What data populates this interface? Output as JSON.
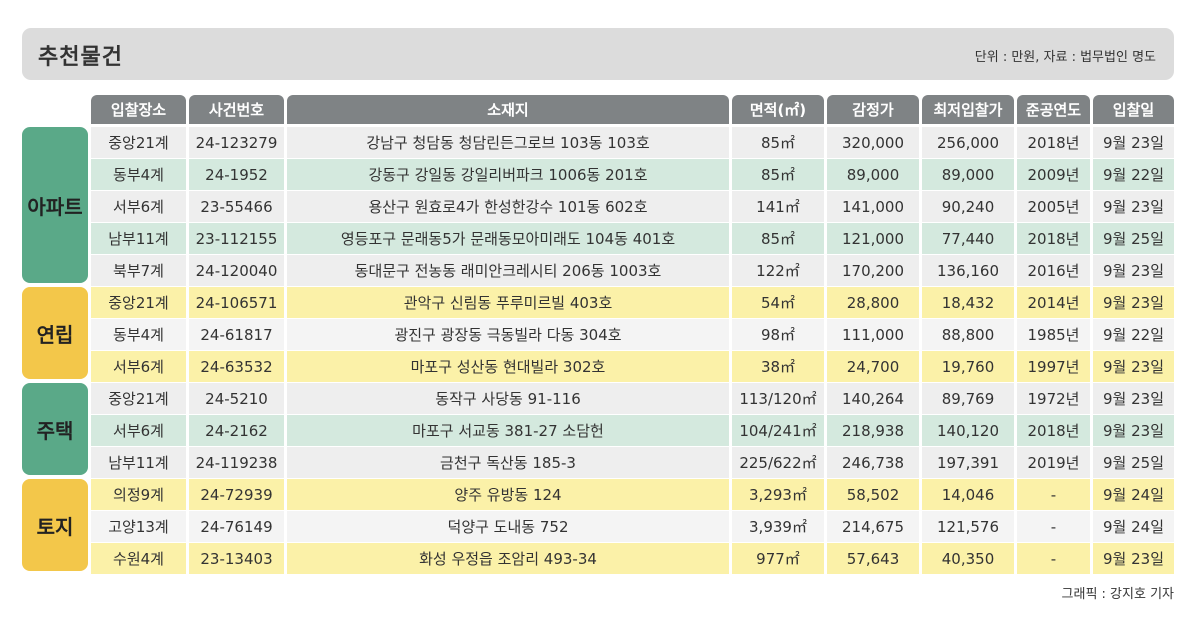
{
  "header": {
    "title": "추천물건",
    "unit_note": "단위 : 만원, 자료 : 법무법인 명도"
  },
  "columns": [
    "입찰장소",
    "사건번호",
    "소재지",
    "면적(㎡)",
    "감정가",
    "최저입찰가",
    "준공연도",
    "입찰일"
  ],
  "groups": [
    {
      "category": "아파트",
      "rows": [
        {
          "place": "중앙21계",
          "case": "24-123279",
          "address": "강남구 청담동 청담린든그로브 103동 103호",
          "area": "85㎡",
          "appraisal": "320,000",
          "min_bid": "256,000",
          "year": "2018년",
          "date": "9월 23일"
        },
        {
          "place": "동부4계",
          "case": "24-1952",
          "address": "강동구 강일동 강일리버파크 1006동 201호",
          "area": "85㎡",
          "appraisal": "89,000",
          "min_bid": "89,000",
          "year": "2009년",
          "date": "9월 22일"
        },
        {
          "place": "서부6계",
          "case": "23-55466",
          "address": "용산구 원효로4가 한성한강수 101동 602호",
          "area": "141㎡",
          "appraisal": "141,000",
          "min_bid": "90,240",
          "year": "2005년",
          "date": "9월 23일"
        },
        {
          "place": "남부11계",
          "case": "23-112155",
          "address": "영등포구 문래동5가 문래동모아미래도 104동 401호",
          "area": "85㎡",
          "appraisal": "121,000",
          "min_bid": "77,440",
          "year": "2018년",
          "date": "9월 25일"
        },
        {
          "place": "북부7계",
          "case": "24-120040",
          "address": "동대문구 전농동 래미안크레시티 206동 1003호",
          "area": "122㎡",
          "appraisal": "170,200",
          "min_bid": "136,160",
          "year": "2016년",
          "date": "9월 23일"
        }
      ]
    },
    {
      "category": "연립",
      "rows": [
        {
          "place": "중앙21계",
          "case": "24-106571",
          "address": "관악구 신림동 푸루미르빌 403호",
          "area": "54㎡",
          "appraisal": "28,800",
          "min_bid": "18,432",
          "year": "2014년",
          "date": "9월 23일"
        },
        {
          "place": "동부4계",
          "case": "24-61817",
          "address": "광진구 광장동 극동빌라 다동 304호",
          "area": "98㎡",
          "appraisal": "111,000",
          "min_bid": "88,800",
          "year": "1985년",
          "date": "9월 22일"
        },
        {
          "place": "서부6계",
          "case": "24-63532",
          "address": "마포구 성산동 현대빌라 302호",
          "area": "38㎡",
          "appraisal": "24,700",
          "min_bid": "19,760",
          "year": "1997년",
          "date": "9월 23일"
        }
      ]
    },
    {
      "category": "주택",
      "rows": [
        {
          "place": "중앙21계",
          "case": "24-5210",
          "address": "동작구 사당동 91-116",
          "area": "113/120㎡",
          "appraisal": "140,264",
          "min_bid": "89,769",
          "year": "1972년",
          "date": "9월 23일"
        },
        {
          "place": "서부6계",
          "case": "24-2162",
          "address": "마포구 서교동 381-27 소담헌",
          "area": "104/241㎡",
          "appraisal": "218,938",
          "min_bid": "140,120",
          "year": "2018년",
          "date": "9월 23일"
        },
        {
          "place": "남부11계",
          "case": "24-119238",
          "address": "금천구 독산동 185-3",
          "area": "225/622㎡",
          "appraisal": "246,738",
          "min_bid": "197,391",
          "year": "2019년",
          "date": "9월 25일"
        }
      ]
    },
    {
      "category": "토지",
      "rows": [
        {
          "place": "의정9계",
          "case": "24-72939",
          "address": "양주 유방동 124",
          "area": "3,293㎡",
          "appraisal": "58,502",
          "min_bid": "14,046",
          "year": "-",
          "date": "9월 24일"
        },
        {
          "place": "고양13계",
          "case": "24-76149",
          "address": "덕양구 도내동 752",
          "area": "3,939㎡",
          "appraisal": "214,675",
          "min_bid": "121,576",
          "year": "-",
          "date": "9월 24일"
        },
        {
          "place": "수원4계",
          "case": "23-13403",
          "address": "화성 우정읍 조암리 493-34",
          "area": "977㎡",
          "appraisal": "57,643",
          "min_bid": "40,350",
          "year": "-",
          "date": "9월 23일"
        }
      ]
    }
  ],
  "credit": "그래픽 : 강지호 기자",
  "colors": {
    "green": "#5aa988",
    "yellow": "#f3c74a",
    "header_gray": "#7f8385"
  }
}
